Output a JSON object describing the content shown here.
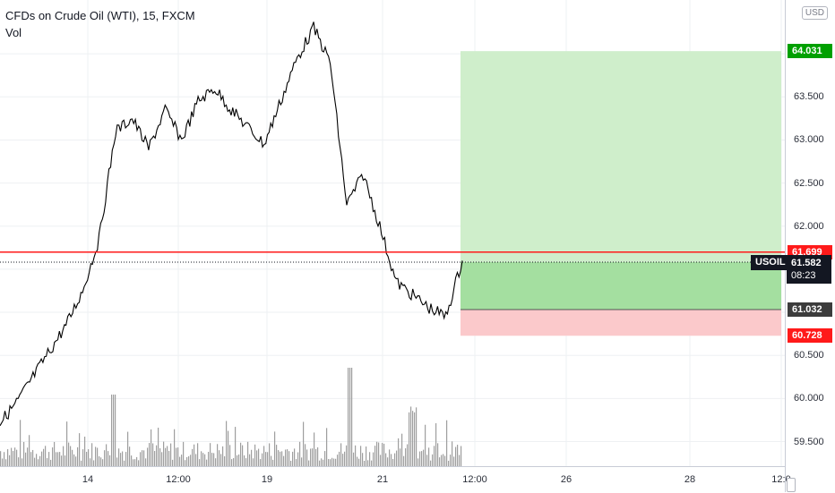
{
  "header": {
    "title": "CFDs on Crude Oil (WTI), 15, FXCM",
    "indicator": "Vol"
  },
  "currency": "USD",
  "symbol": "USOIL",
  "price_axis": {
    "ticks": [
      "64.000",
      "63.500",
      "63.000",
      "62.500",
      "62.000",
      "61.500",
      "61.000",
      "60.500",
      "60.000",
      "59.500"
    ]
  },
  "time_axis": {
    "ticks": [
      "14",
      "12:00",
      "19",
      "21",
      "12:00",
      "26",
      "28",
      "12:0"
    ]
  },
  "price_labels": {
    "target": {
      "text": "64.031",
      "color": "#00a000"
    },
    "stop_line": {
      "text": "61.699",
      "color": "#ff1a1a"
    },
    "current": {
      "text": "61.582",
      "countdown": "08:23",
      "color": "#131722"
    },
    "entry": {
      "text": "61.032",
      "color": "#3c3c3c"
    },
    "stop": {
      "text": "60.728",
      "color": "#ff1a1a"
    }
  },
  "colors": {
    "candles": "#000000",
    "volume": "#9e9e9e",
    "profit_zone": "#cfeecb",
    "profit_zone_dark": "#a4dfa0",
    "loss_zone": "#fbc9cb",
    "stop_line": "#ff1a1a",
    "grid": "#eef0f3"
  },
  "chart_data": {
    "type": "line",
    "price_range": [
      59.3,
      64.5
    ],
    "y_ticks": [
      59.5,
      60.0,
      60.5,
      61.0,
      61.5,
      62.0,
      62.5,
      63.0,
      63.5,
      64.0
    ],
    "series": [
      {
        "values": [
          59.72,
          59.95,
          60.25,
          60.55,
          60.85,
          61.25,
          61.85,
          63.1,
          63.25,
          62.9,
          63.35,
          63.0,
          63.45,
          63.6,
          63.35,
          63.15,
          62.95,
          63.45,
          63.95,
          64.3,
          63.9,
          62.25,
          62.6,
          62.0,
          61.35,
          61.2,
          61.05,
          60.95,
          61.6
        ]
      }
    ],
    "levels": {
      "target": 64.031,
      "stop_line": 61.699,
      "current": 61.582,
      "entry": 61.032,
      "stop": 60.728
    }
  }
}
